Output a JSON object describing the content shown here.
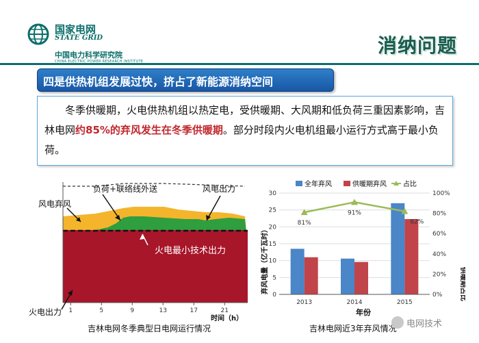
{
  "header": {
    "org_cn": "国家电网",
    "org_en": "STATE GRID",
    "institute_cn": "中国电力科学研究院",
    "institute_en": "CHINA ELECTRIC POWER RESEARCH INSTITUTE",
    "title": "消纳问题"
  },
  "banner": {
    "text": "四是供热机组发展过快，挤占了新能源消纳空间"
  },
  "body_text": {
    "part1": "冬季供暖期，火电供热机组以热定电，受供暖期、大风期和低负荷三重因素影响，吉林电网",
    "highlight": "约85%的弃风发生在冬季供暖期",
    "part2": "。部分时段内火电机组最小运行方式高于最小负荷。"
  },
  "colors": {
    "accent": "#0a6e6a",
    "banner": "#1857a6",
    "highlight": "#c0272d"
  },
  "left_chart": {
    "caption": "吉林电网冬季典型日电网运行情况",
    "xlabel": "时间（h）",
    "x_ticks": [
      "1",
      "5",
      "9",
      "13",
      "17",
      "21"
    ],
    "annotations": {
      "curtail": "风电弃风",
      "load": "负荷+联络线外送",
      "wind": "风电出力",
      "min_thermal": "火电最小技术出力",
      "thermal": "火电出力"
    },
    "colors": {
      "thermal": "#a8162a",
      "wind": "#2f9e3f",
      "curtail": "#f4b52c"
    }
  },
  "chart_data": {
    "type": "bar",
    "title": "吉林电网近3年弃风情况",
    "categories": [
      "2013",
      "2014",
      "2015"
    ],
    "series": [
      {
        "name": "全年弃风",
        "values": [
          13.5,
          10.6,
          27.0
        ],
        "color": "#4a86c8"
      },
      {
        "name": "供暖期弃风",
        "values": [
          11.0,
          9.6,
          22.3
        ],
        "color": "#c0444a"
      }
    ],
    "line_series": {
      "name": "占比",
      "values": [
        81,
        91,
        82
      ],
      "labels": [
        "81%",
        "91%",
        "82%"
      ],
      "color": "#9bbb59"
    },
    "xlabel": "年份",
    "ylabel": "弃风电量（亿千瓦时）",
    "y2label": "供暖期占比",
    "ylim": [
      0,
      30
    ],
    "y_ticks": [
      "0",
      "5",
      "10",
      "15",
      "20",
      "25",
      "30"
    ],
    "y2lim": [
      0,
      100
    ],
    "y2_ticks": [
      "0%",
      "20%",
      "40%",
      "60%",
      "80%",
      "100%"
    ],
    "legend_position": "top"
  },
  "watermark": {
    "text": "电网技术"
  }
}
